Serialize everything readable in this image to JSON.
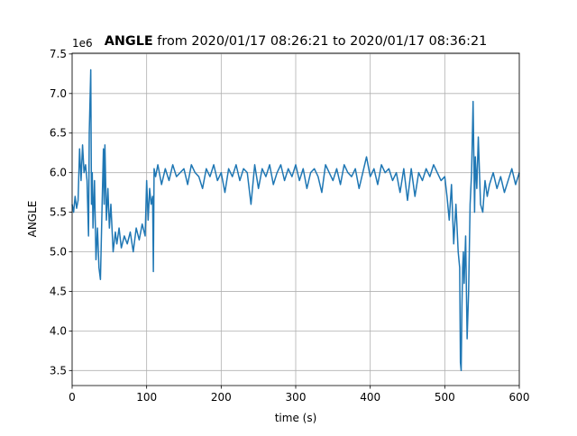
{
  "chart_data": {
    "type": "line",
    "title_variable": "ANGLE",
    "title": "from 2020/01/17 08:26:21 to 2020/01/17 08:36:21",
    "x_label": "time (s)",
    "y_label": "ANGLE",
    "y_offset_label": "1e6",
    "color": "#1f77b4",
    "grid": true,
    "xlim": [
      0,
      600
    ],
    "xticks": [
      0,
      100,
      200,
      300,
      400,
      500,
      600
    ],
    "ylim": [
      3.31,
      7.51
    ],
    "yticks": [
      3.5,
      {
        "value": 4,
        "label": "4.0"
      },
      4.5,
      {
        "value": 5,
        "label": "5.0"
      },
      5.5,
      {
        "value": 6,
        "label": "6.0"
      },
      6.5,
      {
        "value": 7,
        "label": "7.0"
      },
      7.5
    ],
    "x": [
      0,
      2,
      4,
      6,
      8,
      10,
      12,
      14,
      16,
      18,
      20,
      22,
      23,
      24,
      25,
      26,
      27,
      28,
      30,
      32,
      34,
      36,
      38,
      40,
      42,
      43,
      44,
      46,
      48,
      50,
      52,
      55,
      58,
      60,
      63,
      66,
      70,
      74,
      78,
      82,
      86,
      90,
      94,
      98,
      100,
      102,
      104,
      106,
      108,
      109,
      110,
      112,
      115,
      120,
      125,
      130,
      135,
      140,
      145,
      150,
      155,
      160,
      165,
      170,
      175,
      180,
      185,
      190,
      195,
      200,
      205,
      210,
      215,
      220,
      225,
      230,
      235,
      240,
      245,
      250,
      255,
      260,
      265,
      270,
      275,
      280,
      285,
      290,
      295,
      300,
      305,
      310,
      315,
      320,
      325,
      330,
      335,
      340,
      345,
      350,
      355,
      360,
      365,
      370,
      375,
      380,
      385,
      390,
      395,
      400,
      405,
      410,
      415,
      420,
      425,
      430,
      435,
      440,
      445,
      450,
      455,
      460,
      465,
      470,
      475,
      480,
      485,
      490,
      495,
      500,
      503,
      506,
      509,
      512,
      515,
      518,
      520,
      521,
      522,
      523,
      524,
      525,
      526,
      528,
      530,
      532,
      534,
      536,
      538,
      540,
      541,
      543,
      545,
      548,
      551,
      554,
      557,
      560,
      565,
      570,
      575,
      580,
      585,
      590,
      595,
      600
    ],
    "values": [
      5.6,
      5.5,
      5.7,
      5.55,
      5.65,
      6.3,
      5.9,
      6.35,
      6.0,
      6.1,
      5.9,
      5.2,
      6.5,
      6.9,
      7.3,
      5.6,
      6.0,
      5.3,
      5.9,
      4.9,
      5.3,
      4.8,
      4.65,
      5.5,
      6.3,
      5.6,
      6.35,
      5.4,
      5.8,
      5.3,
      5.6,
      5.0,
      5.25,
      5.1,
      5.3,
      5.05,
      5.2,
      5.1,
      5.25,
      5.0,
      5.3,
      5.15,
      5.35,
      5.2,
      5.9,
      5.4,
      5.8,
      5.6,
      5.7,
      4.75,
      6.05,
      5.95,
      6.1,
      5.85,
      6.05,
      5.9,
      6.1,
      5.95,
      6.0,
      6.05,
      5.85,
      6.1,
      6.0,
      5.95,
      5.8,
      6.05,
      5.95,
      6.1,
      5.9,
      6.0,
      5.75,
      6.05,
      5.95,
      6.1,
      5.9,
      6.05,
      6.0,
      5.6,
      6.1,
      5.8,
      6.05,
      5.95,
      6.1,
      5.85,
      6.0,
      6.1,
      5.9,
      6.05,
      5.95,
      6.1,
      5.9,
      6.05,
      5.8,
      6.0,
      6.05,
      5.95,
      5.75,
      6.1,
      6.0,
      5.9,
      6.05,
      5.85,
      6.1,
      6.0,
      5.95,
      6.05,
      5.8,
      6.0,
      6.2,
      5.95,
      6.05,
      5.85,
      6.1,
      6.0,
      6.05,
      5.9,
      6.0,
      5.75,
      6.05,
      5.65,
      6.05,
      5.7,
      6.0,
      5.9,
      6.05,
      5.95,
      6.1,
      6.0,
      5.9,
      5.95,
      5.7,
      5.4,
      5.85,
      5.1,
      5.6,
      5.0,
      4.8,
      3.6,
      3.5,
      4.3,
      4.8,
      5.0,
      4.6,
      5.2,
      3.9,
      4.5,
      5.6,
      6.0,
      6.9,
      5.5,
      6.2,
      5.8,
      6.45,
      5.6,
      5.5,
      5.9,
      5.7,
      5.85,
      6.0,
      5.8,
      5.95,
      5.75,
      5.9,
      6.05,
      5.85,
      6.0
    ]
  }
}
